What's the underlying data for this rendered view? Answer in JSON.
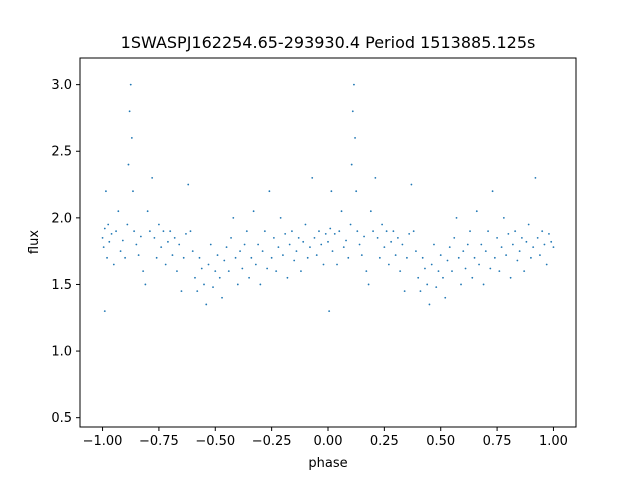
{
  "chart_data": {
    "type": "scatter",
    "title": "1SWASPJ162254.65-293930.4 Period 1513885.125s",
    "xlabel": "phase",
    "ylabel": "flux",
    "xlim": [
      -1.1,
      1.1
    ],
    "ylim": [
      0.43,
      3.2
    ],
    "xticks": [
      {
        "value": -1.0,
        "label": "−1.00"
      },
      {
        "value": -0.75,
        "label": "−0.75"
      },
      {
        "value": -0.5,
        "label": "−0.50"
      },
      {
        "value": -0.25,
        "label": "−0.25"
      },
      {
        "value": 0.0,
        "label": "0.00"
      },
      {
        "value": 0.25,
        "label": "0.25"
      },
      {
        "value": 0.5,
        "label": "0.50"
      },
      {
        "value": 0.75,
        "label": "0.75"
      },
      {
        "value": 1.0,
        "label": "1.00"
      }
    ],
    "yticks": [
      {
        "value": 0.5,
        "label": "0.5"
      },
      {
        "value": 1.0,
        "label": "1.0"
      },
      {
        "value": 1.5,
        "label": "1.5"
      },
      {
        "value": 2.0,
        "label": "2.0"
      },
      {
        "value": 2.5,
        "label": "2.5"
      },
      {
        "value": 3.0,
        "label": "3.0"
      }
    ],
    "grid": false,
    "marker_color": "#1f77b4",
    "series": [
      {
        "points": [
          [
            -1.0,
            1.85
          ],
          [
            -0.995,
            1.78
          ],
          [
            -0.99,
            1.92
          ],
          [
            -0.99,
            1.3
          ],
          [
            -0.985,
            2.2
          ],
          [
            -0.98,
            1.7
          ],
          [
            -0.975,
            1.95
          ],
          [
            -0.97,
            1.82
          ],
          [
            -0.96,
            1.88
          ],
          [
            -0.95,
            1.65
          ],
          [
            -0.94,
            1.9
          ],
          [
            -0.93,
            2.05
          ],
          [
            -0.92,
            1.75
          ],
          [
            -0.91,
            1.83
          ],
          [
            -0.9,
            1.7
          ],
          [
            -0.89,
            1.95
          ],
          [
            -0.885,
            2.4
          ],
          [
            -0.88,
            2.8
          ],
          [
            -0.875,
            3.0
          ],
          [
            -0.87,
            2.6
          ],
          [
            -0.865,
            2.2
          ],
          [
            -0.86,
            1.9
          ],
          [
            -0.85,
            1.8
          ],
          [
            -0.84,
            1.72
          ],
          [
            -0.83,
            1.86
          ],
          [
            -0.82,
            1.6
          ],
          [
            -0.81,
            1.5
          ],
          [
            -0.8,
            2.05
          ],
          [
            -0.79,
            1.9
          ],
          [
            -0.78,
            2.3
          ],
          [
            -0.77,
            1.85
          ],
          [
            -0.76,
            1.7
          ],
          [
            -0.75,
            1.95
          ],
          [
            -0.74,
            1.78
          ],
          [
            -0.73,
            1.9
          ],
          [
            -0.72,
            1.65
          ],
          [
            -0.71,
            1.82
          ],
          [
            -0.7,
            1.9
          ],
          [
            -0.69,
            1.72
          ],
          [
            -0.68,
            1.85
          ],
          [
            -0.67,
            1.6
          ],
          [
            -0.66,
            1.8
          ],
          [
            -0.65,
            1.45
          ],
          [
            -0.64,
            1.7
          ],
          [
            -0.63,
            1.88
          ],
          [
            -0.62,
            2.25
          ],
          [
            -0.61,
            1.9
          ],
          [
            -0.6,
            1.75
          ],
          [
            -0.59,
            1.55
          ],
          [
            -0.58,
            1.45
          ],
          [
            -0.57,
            1.7
          ],
          [
            -0.56,
            1.62
          ],
          [
            -0.55,
            1.5
          ],
          [
            -0.54,
            1.35
          ],
          [
            -0.53,
            1.65
          ],
          [
            -0.52,
            1.8
          ],
          [
            -0.51,
            1.48
          ],
          [
            -0.5,
            1.6
          ],
          [
            -0.49,
            1.72
          ],
          [
            -0.48,
            1.55
          ],
          [
            -0.47,
            1.4
          ],
          [
            -0.46,
            1.68
          ],
          [
            -0.45,
            1.78
          ],
          [
            -0.44,
            1.6
          ],
          [
            -0.43,
            1.85
          ],
          [
            -0.42,
            2.0
          ],
          [
            -0.41,
            1.7
          ],
          [
            -0.4,
            1.5
          ],
          [
            -0.39,
            1.75
          ],
          [
            -0.38,
            1.62
          ],
          [
            -0.37,
            1.8
          ],
          [
            -0.36,
            1.9
          ],
          [
            -0.35,
            1.55
          ],
          [
            -0.34,
            1.7
          ],
          [
            -0.33,
            2.05
          ],
          [
            -0.32,
            1.65
          ],
          [
            -0.31,
            1.8
          ],
          [
            -0.3,
            1.5
          ],
          [
            -0.29,
            1.75
          ],
          [
            -0.28,
            1.9
          ],
          [
            -0.27,
            1.62
          ],
          [
            -0.26,
            2.2
          ],
          [
            -0.25,
            1.7
          ],
          [
            -0.24,
            1.85
          ],
          [
            -0.23,
            1.6
          ],
          [
            -0.22,
            1.78
          ],
          [
            -0.21,
            2.0
          ],
          [
            -0.2,
            1.72
          ],
          [
            -0.19,
            1.88
          ],
          [
            -0.18,
            1.55
          ],
          [
            -0.17,
            1.8
          ],
          [
            -0.16,
            1.9
          ],
          [
            -0.15,
            1.68
          ],
          [
            -0.14,
            1.75
          ],
          [
            -0.13,
            1.85
          ],
          [
            -0.12,
            1.6
          ],
          [
            -0.11,
            1.82
          ],
          [
            -0.1,
            1.95
          ],
          [
            -0.09,
            1.7
          ],
          [
            -0.08,
            1.78
          ],
          [
            -0.07,
            2.3
          ],
          [
            -0.06,
            1.85
          ],
          [
            -0.05,
            1.72
          ],
          [
            -0.04,
            1.9
          ],
          [
            -0.03,
            1.8
          ],
          [
            -0.02,
            1.65
          ],
          [
            -0.01,
            1.88
          ],
          [
            0.0,
            1.82
          ],
          [
            0.005,
            1.3
          ],
          [
            0.01,
            1.92
          ],
          [
            0.015,
            2.2
          ],
          [
            0.02,
            1.75
          ],
          [
            0.03,
            1.88
          ],
          [
            0.04,
            1.65
          ],
          [
            0.05,
            1.9
          ],
          [
            0.06,
            2.05
          ],
          [
            0.07,
            1.78
          ],
          [
            0.08,
            1.83
          ],
          [
            0.09,
            1.7
          ],
          [
            0.1,
            1.95
          ],
          [
            0.105,
            2.4
          ],
          [
            0.11,
            2.8
          ],
          [
            0.115,
            3.0
          ],
          [
            0.12,
            2.6
          ],
          [
            0.125,
            2.2
          ],
          [
            0.13,
            1.9
          ],
          [
            0.14,
            1.8
          ],
          [
            0.15,
            1.72
          ],
          [
            0.16,
            1.86
          ],
          [
            0.17,
            1.6
          ],
          [
            0.18,
            1.5
          ],
          [
            0.19,
            2.05
          ],
          [
            0.2,
            1.9
          ],
          [
            0.21,
            2.3
          ],
          [
            0.22,
            1.85
          ],
          [
            0.23,
            1.7
          ],
          [
            0.24,
            1.95
          ],
          [
            0.25,
            1.78
          ],
          [
            0.26,
            1.9
          ],
          [
            0.27,
            1.65
          ],
          [
            0.28,
            1.82
          ],
          [
            0.29,
            1.9
          ],
          [
            0.3,
            1.72
          ],
          [
            0.31,
            1.85
          ],
          [
            0.32,
            1.6
          ],
          [
            0.33,
            1.8
          ],
          [
            0.34,
            1.45
          ],
          [
            0.35,
            1.7
          ],
          [
            0.36,
            1.88
          ],
          [
            0.37,
            2.25
          ],
          [
            0.38,
            1.9
          ],
          [
            0.39,
            1.75
          ],
          [
            0.4,
            1.55
          ],
          [
            0.41,
            1.45
          ],
          [
            0.42,
            1.7
          ],
          [
            0.43,
            1.62
          ],
          [
            0.44,
            1.5
          ],
          [
            0.45,
            1.35
          ],
          [
            0.46,
            1.65
          ],
          [
            0.47,
            1.8
          ],
          [
            0.48,
            1.48
          ],
          [
            0.49,
            1.6
          ],
          [
            0.5,
            1.72
          ],
          [
            0.51,
            1.55
          ],
          [
            0.52,
            1.4
          ],
          [
            0.53,
            1.68
          ],
          [
            0.54,
            1.78
          ],
          [
            0.55,
            1.6
          ],
          [
            0.56,
            1.85
          ],
          [
            0.57,
            2.0
          ],
          [
            0.58,
            1.7
          ],
          [
            0.59,
            1.5
          ],
          [
            0.6,
            1.75
          ],
          [
            0.61,
            1.62
          ],
          [
            0.62,
            1.8
          ],
          [
            0.63,
            1.9
          ],
          [
            0.64,
            1.55
          ],
          [
            0.65,
            1.7
          ],
          [
            0.66,
            2.05
          ],
          [
            0.67,
            1.65
          ],
          [
            0.68,
            1.8
          ],
          [
            0.69,
            1.5
          ],
          [
            0.7,
            1.75
          ],
          [
            0.71,
            1.9
          ],
          [
            0.72,
            1.62
          ],
          [
            0.73,
            2.2
          ],
          [
            0.74,
            1.7
          ],
          [
            0.75,
            1.85
          ],
          [
            0.76,
            1.6
          ],
          [
            0.77,
            1.78
          ],
          [
            0.78,
            2.0
          ],
          [
            0.79,
            1.72
          ],
          [
            0.8,
            1.88
          ],
          [
            0.81,
            1.55
          ],
          [
            0.82,
            1.8
          ],
          [
            0.83,
            1.9
          ],
          [
            0.84,
            1.68
          ],
          [
            0.85,
            1.75
          ],
          [
            0.86,
            1.85
          ],
          [
            0.87,
            1.6
          ],
          [
            0.88,
            1.82
          ],
          [
            0.89,
            1.95
          ],
          [
            0.9,
            1.7
          ],
          [
            0.91,
            1.78
          ],
          [
            0.92,
            2.3
          ],
          [
            0.93,
            1.85
          ],
          [
            0.94,
            1.72
          ],
          [
            0.95,
            1.9
          ],
          [
            0.96,
            1.8
          ],
          [
            0.97,
            1.65
          ],
          [
            0.98,
            1.88
          ],
          [
            0.99,
            1.82
          ],
          [
            1.0,
            1.78
          ]
        ]
      }
    ]
  }
}
